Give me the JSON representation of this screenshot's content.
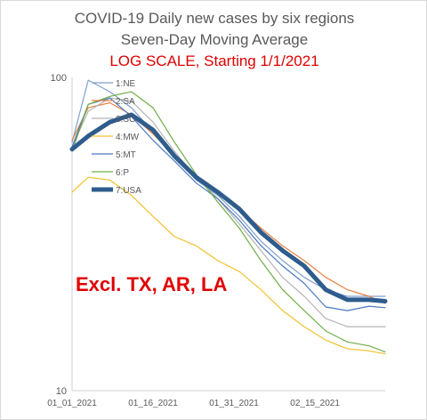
{
  "chart_data": {
    "type": "line",
    "title": "COVID-19 Daily new cases by six regions",
    "subtitle": "Seven-Day Moving Average",
    "scale_note": "LOG SCALE, Starting 1/1/2021",
    "annotation": "Excl. TX, AR, LA",
    "yscale": "log",
    "ylim": [
      10,
      100
    ],
    "y_ticks": [
      "100",
      "10"
    ],
    "y_tick_values": [
      100,
      10
    ],
    "x_ticks": [
      "01_01_2021",
      "01_16_2021",
      "01_31_2021",
      "02_15_2021"
    ],
    "x_tick_days": [
      0,
      15,
      30,
      45
    ],
    "x_start": "2021-01-01",
    "x_end": "2021-02-28",
    "grid": false,
    "legend_placement": "top-left",
    "colors": {
      "1:NE": "#7f9fcf",
      "2:SA": "#e8803f",
      "3:SC": "#b3b3b3",
      "4:MW": "#f2c12e",
      "5:MT": "#4a78c2",
      "6:P": "#70ad47",
      "7:USA": "#2e5c8c"
    },
    "series": [
      {
        "name": "1:NE",
        "x": [
          "2021-01-01",
          "2021-01-04",
          "2021-01-08",
          "2021-01-12",
          "2021-01-16",
          "2021-01-20",
          "2021-01-24",
          "2021-01-28",
          "2021-02-01",
          "2021-02-05",
          "2021-02-09",
          "2021-02-13",
          "2021-02-17",
          "2021-02-21",
          "2021-02-25",
          "2021-02-28"
        ],
        "values": [
          62,
          98,
          90,
          80,
          67,
          56,
          47,
          42,
          36,
          30,
          26,
          23,
          21,
          20,
          20,
          20
        ]
      },
      {
        "name": "2:SA",
        "x": [
          "2021-01-01",
          "2021-01-04",
          "2021-01-08",
          "2021-01-12",
          "2021-01-16",
          "2021-01-20",
          "2021-01-24",
          "2021-01-28",
          "2021-02-01",
          "2021-02-05",
          "2021-02-09",
          "2021-02-13",
          "2021-02-17",
          "2021-02-21",
          "2021-02-25",
          "2021-02-28"
        ],
        "values": [
          63,
          80,
          83,
          76,
          66,
          56,
          48,
          43,
          38,
          33,
          29,
          26,
          23,
          21,
          20,
          19
        ]
      },
      {
        "name": "3:SC",
        "x": [
          "2021-01-01",
          "2021-01-04",
          "2021-01-08",
          "2021-01-12",
          "2021-01-16",
          "2021-01-20",
          "2021-01-24",
          "2021-01-28",
          "2021-02-01",
          "2021-02-05",
          "2021-02-09",
          "2021-02-13",
          "2021-02-17",
          "2021-02-21",
          "2021-02-25",
          "2021-02-28"
        ],
        "values": [
          60,
          78,
          86,
          84,
          72,
          58,
          48,
          41,
          34,
          28,
          23,
          20,
          17,
          16,
          16,
          16
        ]
      },
      {
        "name": "4:MW",
        "x": [
          "2021-01-01",
          "2021-01-04",
          "2021-01-08",
          "2021-01-12",
          "2021-01-16",
          "2021-01-20",
          "2021-01-24",
          "2021-01-28",
          "2021-02-01",
          "2021-02-05",
          "2021-02-09",
          "2021-02-13",
          "2021-02-17",
          "2021-02-21",
          "2021-02-25",
          "2021-02-28"
        ],
        "values": [
          43,
          48,
          47,
          42,
          36,
          31,
          29,
          26,
          24,
          21,
          18,
          16,
          14.5,
          13.6,
          13.4,
          13.1
        ]
      },
      {
        "name": "5:MT",
        "x": [
          "2021-01-01",
          "2021-01-04",
          "2021-01-08",
          "2021-01-12",
          "2021-01-16",
          "2021-01-20",
          "2021-01-24",
          "2021-01-28",
          "2021-02-01",
          "2021-02-05",
          "2021-02-09",
          "2021-02-13",
          "2021-02-17",
          "2021-02-21",
          "2021-02-25",
          "2021-02-28"
        ],
        "values": [
          60,
          82,
          86,
          75,
          63,
          54,
          46,
          41,
          35,
          29,
          25,
          22,
          18.5,
          18,
          18.6,
          18.4
        ]
      },
      {
        "name": "6:P",
        "x": [
          "2021-01-01",
          "2021-01-04",
          "2021-01-08",
          "2021-01-12",
          "2021-01-16",
          "2021-01-20",
          "2021-01-24",
          "2021-01-28",
          "2021-02-01",
          "2021-02-05",
          "2021-02-09",
          "2021-02-13",
          "2021-02-17",
          "2021-02-21",
          "2021-02-25",
          "2021-02-28"
        ],
        "values": [
          58,
          82,
          87,
          90,
          80,
          62,
          49,
          40,
          33,
          26,
          21,
          18,
          15.5,
          14.3,
          13.9,
          13.3
        ]
      },
      {
        "name": "7:USA",
        "x": [
          "2021-01-01",
          "2021-01-04",
          "2021-01-08",
          "2021-01-12",
          "2021-01-16",
          "2021-01-20",
          "2021-01-24",
          "2021-01-28",
          "2021-02-01",
          "2021-02-05",
          "2021-02-09",
          "2021-02-13",
          "2021-02-17",
          "2021-02-21",
          "2021-02-25",
          "2021-02-28"
        ],
        "values": [
          59,
          65,
          72,
          76,
          68,
          56,
          48,
          43,
          38,
          32,
          28,
          25,
          21,
          19.5,
          19.5,
          19.3
        ]
      }
    ]
  }
}
